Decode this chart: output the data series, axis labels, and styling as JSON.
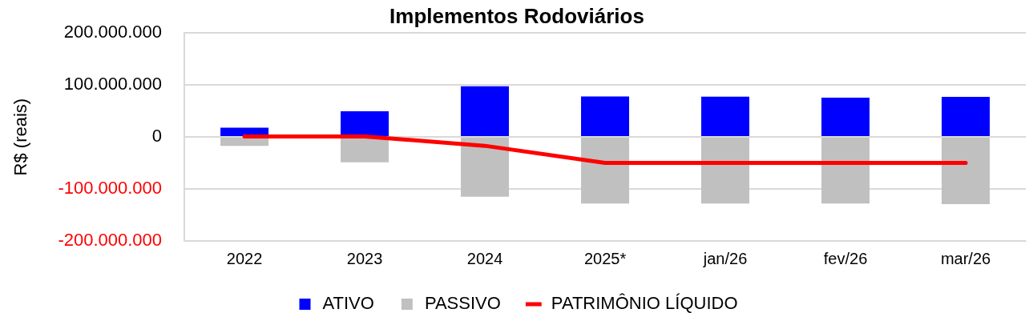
{
  "chart_data": {
    "type": "bar",
    "title": "Implementos Rodoviários",
    "ylabel": "R$ (reais)",
    "categories": [
      "2022",
      "2023",
      "2024",
      "2025*",
      "jan/26",
      "fev/26",
      "mar/26"
    ],
    "stacked": true,
    "series": [
      {
        "name": "ATIVO",
        "color": "#0000ff",
        "values": [
          18000000,
          49500000,
          97700000,
          78000000,
          77500000,
          75700000,
          77000000
        ]
      },
      {
        "name": "PASSIVO",
        "color": "#c0c0c0",
        "values": [
          -17000000,
          -48600000,
          -115000000,
          -128000000,
          -128000000,
          -128000000,
          -129000000
        ]
      },
      {
        "name": "PATRIMÔNIO LÍQUIDO",
        "type": "line",
        "color": "#ff0000",
        "marker": "none",
        "values": [
          1000000,
          1000000,
          -17000000,
          -50000000,
          -50000000,
          -50000000,
          -50000000
        ]
      }
    ],
    "ylim": [
      -200000000,
      200000000
    ],
    "yticks": [
      {
        "value": -200000000,
        "label": "-200.000.000"
      },
      {
        "value": -100000000,
        "label": "-100.000.000"
      },
      {
        "value": 0,
        "label": "0"
      },
      {
        "value": 100000000,
        "label": "100.000.000"
      },
      {
        "value": 200000000,
        "label": "200.000.000"
      }
    ],
    "grid": "y",
    "legend": "bottom"
  }
}
